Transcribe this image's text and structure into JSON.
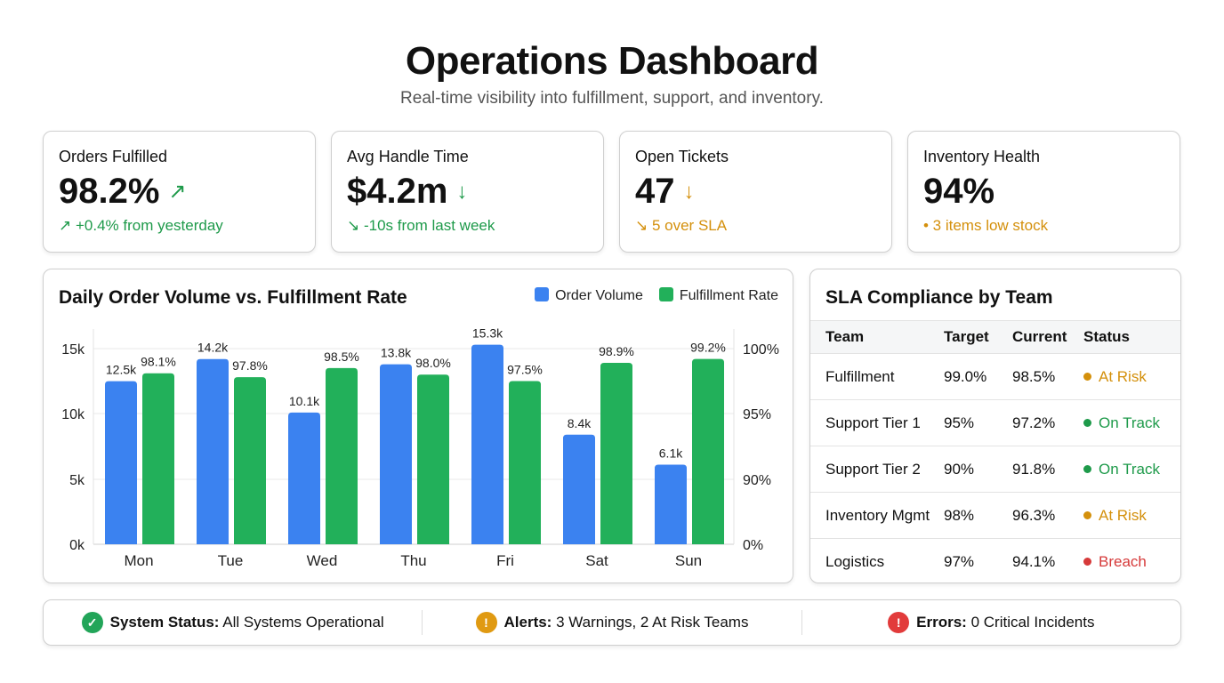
{
  "header": {
    "title": "Operations Dashboard",
    "subtitle": "Real-time visibility into fulfillment, support, and inventory."
  },
  "kpis": [
    {
      "label": "Orders Fulfilled",
      "value": "98.2%",
      "arrow": "↗",
      "note": "↗ +0.4% from yesterday",
      "color": "#1e9a4a"
    },
    {
      "label": "Avg Handle Time",
      "value": "$4.2m",
      "arrow": "↓",
      "note": "↘ -10s from last week",
      "color": "#1e9a4a"
    },
    {
      "label": "Open Tickets",
      "value": "47",
      "arrow": "↓",
      "note": "↘ 5 over SLA",
      "color": "#d4900c"
    },
    {
      "label": "Inventory Health",
      "value": "94%",
      "arrow": "",
      "note": "• 3 items low stock",
      "color": "#d4900c"
    }
  ],
  "chart_data": {
    "type": "bar",
    "title": "Daily Order Volume vs. Fulfillment Rate",
    "categories": [
      "Mon",
      "Tue",
      "Wed",
      "Thu",
      "Fri",
      "Sat",
      "Sun"
    ],
    "series": [
      {
        "name": "Order Volume",
        "axis": "left",
        "color": "#3b82f0",
        "values": [
          12.5,
          14.2,
          10.1,
          13.8,
          15.3,
          8.4,
          6.1
        ],
        "labels": [
          "12.5k",
          "14.2k",
          "10.1k",
          "13.8k",
          "15.3k",
          "8.4k",
          "6.1k"
        ]
      },
      {
        "name": "Fulfillment Rate",
        "axis": "right",
        "color": "#22b05a",
        "values": [
          98.1,
          97.8,
          98.5,
          98.0,
          97.5,
          98.9,
          99.2
        ],
        "labels": [
          "98.1%",
          "97.8%",
          "98.5%",
          "98.0%",
          "97.5%",
          "98.9%",
          "99.2%"
        ]
      }
    ],
    "left_ticks": [
      "0k",
      "5k",
      "10k",
      "15k"
    ],
    "right_ticks": [
      "0%",
      "90%",
      "95%",
      "100%"
    ],
    "grid": true,
    "legend": "top-right"
  },
  "sla": {
    "title": "SLA Compliance by Team",
    "headers": [
      "Team",
      "Target",
      "Current",
      "Status"
    ],
    "rows": [
      {
        "team": "Fulfillment",
        "target": "99.0%",
        "current": "98.5%",
        "status": "At Risk",
        "color": "#d4900c"
      },
      {
        "team": "Support Tier 1",
        "target": "95%",
        "current": "97.2%",
        "status": "On Track",
        "color": "#1e9a4a"
      },
      {
        "team": "Support Tier 2",
        "target": "90%",
        "current": "91.8%",
        "status": "On Track",
        "color": "#1e9a4a"
      },
      {
        "team": "Inventory Mgmt",
        "target": "98%",
        "current": "96.3%",
        "status": "At Risk",
        "color": "#d4900c"
      },
      {
        "team": "Logistics",
        "target": "97%",
        "current": "94.1%",
        "status": "Breach",
        "color": "#d63a3a"
      }
    ]
  },
  "status_bar": [
    {
      "label": "System Status:",
      "value": "All Systems Operational",
      "icon": "check-icon",
      "color": "#22a559"
    },
    {
      "label": "Alerts:",
      "value": "3 Warnings, 2 At Risk Teams",
      "icon": "warning-icon",
      "color": "#e09a12"
    },
    {
      "label": "Errors:",
      "value": "0 Critical Incidents",
      "icon": "error-icon",
      "color": "#e23b3b"
    }
  ]
}
